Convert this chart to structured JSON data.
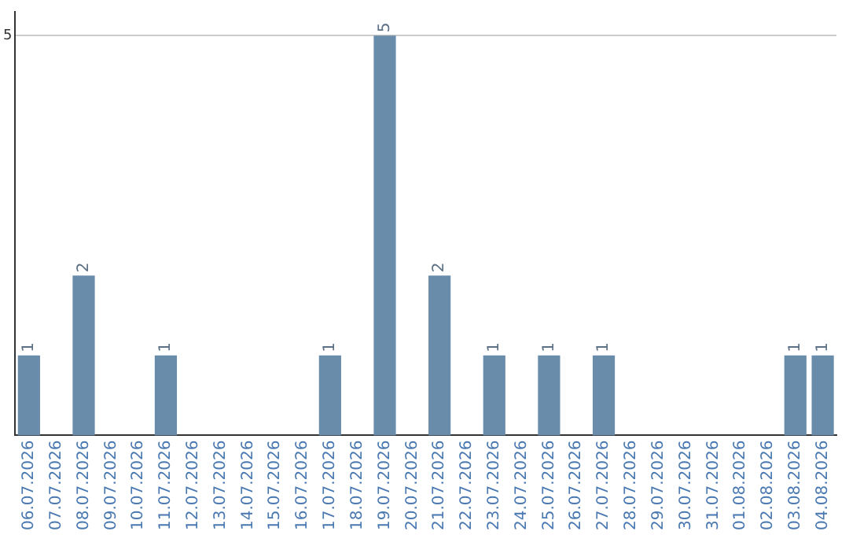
{
  "chart_data": {
    "type": "bar",
    "categories": [
      "06.07.2026",
      "07.07.2026",
      "08.07.2026",
      "09.07.2026",
      "10.07.2026",
      "11.07.2026",
      "12.07.2026",
      "13.07.2026",
      "14.07.2026",
      "15.07.2026",
      "16.07.2026",
      "17.07.2026",
      "18.07.2026",
      "19.07.2026",
      "20.07.2026",
      "21.07.2026",
      "22.07.2026",
      "23.07.2026",
      "24.07.2026",
      "25.07.2026",
      "26.07.2026",
      "27.07.2026",
      "28.07.2026",
      "29.07.2026",
      "30.07.2026",
      "31.07.2026",
      "01.08.2026",
      "02.08.2026",
      "03.08.2026",
      "04.08.2026"
    ],
    "values": [
      1,
      0,
      2,
      0,
      0,
      1,
      0,
      0,
      0,
      0,
      0,
      1,
      0,
      5,
      0,
      2,
      0,
      1,
      0,
      1,
      0,
      1,
      0,
      0,
      0,
      0,
      0,
      0,
      1,
      1
    ],
    "value_labels": [
      "1",
      null,
      "2",
      null,
      null,
      "1",
      null,
      null,
      null,
      null,
      null,
      "1",
      null,
      "5",
      null,
      "2",
      null,
      "1",
      null,
      "1",
      null,
      "1",
      null,
      null,
      null,
      null,
      null,
      null,
      "1",
      "1"
    ],
    "color": "#6a8cab",
    "ylim": [
      0,
      5.3
    ],
    "yticks": [
      5
    ],
    "grid": "y",
    "legend": false
  }
}
